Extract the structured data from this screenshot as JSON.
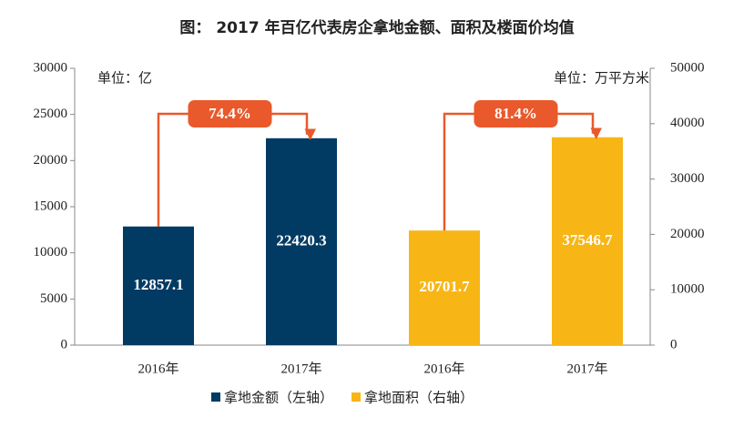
{
  "chart_data": {
    "type": "bar",
    "title": "图： 2017 年百亿代表房企拿地金额、面积及楼面价均值",
    "left_unit": "单位：亿",
    "right_unit": "单位：万平方米",
    "growth_labels": [
      "74.4%",
      "81.4%"
    ],
    "categories": [
      "2016年",
      "2017年",
      "2016年",
      "2017年"
    ],
    "series": [
      {
        "name": "拿地金额（左轴）",
        "color": "#013a63",
        "values": [
          12857.1,
          22420.3,
          null,
          null
        ]
      },
      {
        "name": "拿地面积（右轴）",
        "color": "#f7b616",
        "axis": "y2",
        "values": [
          null,
          null,
          20701.7,
          37546.7
        ]
      }
    ],
    "ylim": [
      0,
      30000
    ],
    "yticks": [
      0,
      5000,
      10000,
      15000,
      20000,
      25000,
      30000
    ],
    "y2lim": [
      0,
      50000
    ],
    "y2ticks": [
      0,
      10000,
      20000,
      30000,
      40000,
      50000
    ],
    "growth_color": "#e9592b"
  }
}
